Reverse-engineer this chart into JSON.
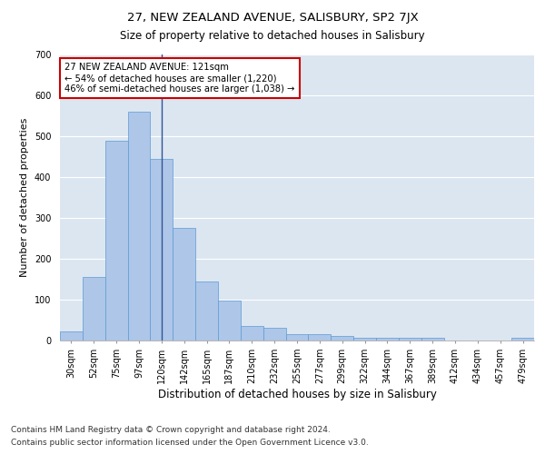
{
  "title": "27, NEW ZEALAND AVENUE, SALISBURY, SP2 7JX",
  "subtitle": "Size of property relative to detached houses in Salisbury",
  "xlabel": "Distribution of detached houses by size in Salisbury",
  "ylabel": "Number of detached properties",
  "footer_line1": "Contains HM Land Registry data © Crown copyright and database right 2024.",
  "footer_line2": "Contains public sector information licensed under the Open Government Licence v3.0.",
  "categories": [
    "30sqm",
    "52sqm",
    "75sqm",
    "97sqm",
    "120sqm",
    "142sqm",
    "165sqm",
    "187sqm",
    "210sqm",
    "232sqm",
    "255sqm",
    "277sqm",
    "299sqm",
    "322sqm",
    "344sqm",
    "367sqm",
    "389sqm",
    "412sqm",
    "434sqm",
    "457sqm",
    "479sqm"
  ],
  "values": [
    22,
    155,
    490,
    560,
    445,
    275,
    145,
    97,
    35,
    32,
    15,
    15,
    12,
    7,
    7,
    6,
    6,
    0,
    0,
    0,
    7
  ],
  "bar_color": "#aec6e8",
  "bar_edge_color": "#5b9bd5",
  "highlight_bar_index": 4,
  "highlight_line_color": "#2f5597",
  "annotation_text": "27 NEW ZEALAND AVENUE: 121sqm\n← 54% of detached houses are smaller (1,220)\n46% of semi-detached houses are larger (1,038) →",
  "annotation_box_color": "#cc0000",
  "ylim": [
    0,
    700
  ],
  "yticks": [
    0,
    100,
    200,
    300,
    400,
    500,
    600,
    700
  ],
  "background_color": "#dce6f1",
  "grid_color": "#ffffff",
  "title_fontsize": 9.5,
  "subtitle_fontsize": 8.5,
  "xlabel_fontsize": 8.5,
  "ylabel_fontsize": 8,
  "tick_fontsize": 7,
  "footer_fontsize": 6.5
}
